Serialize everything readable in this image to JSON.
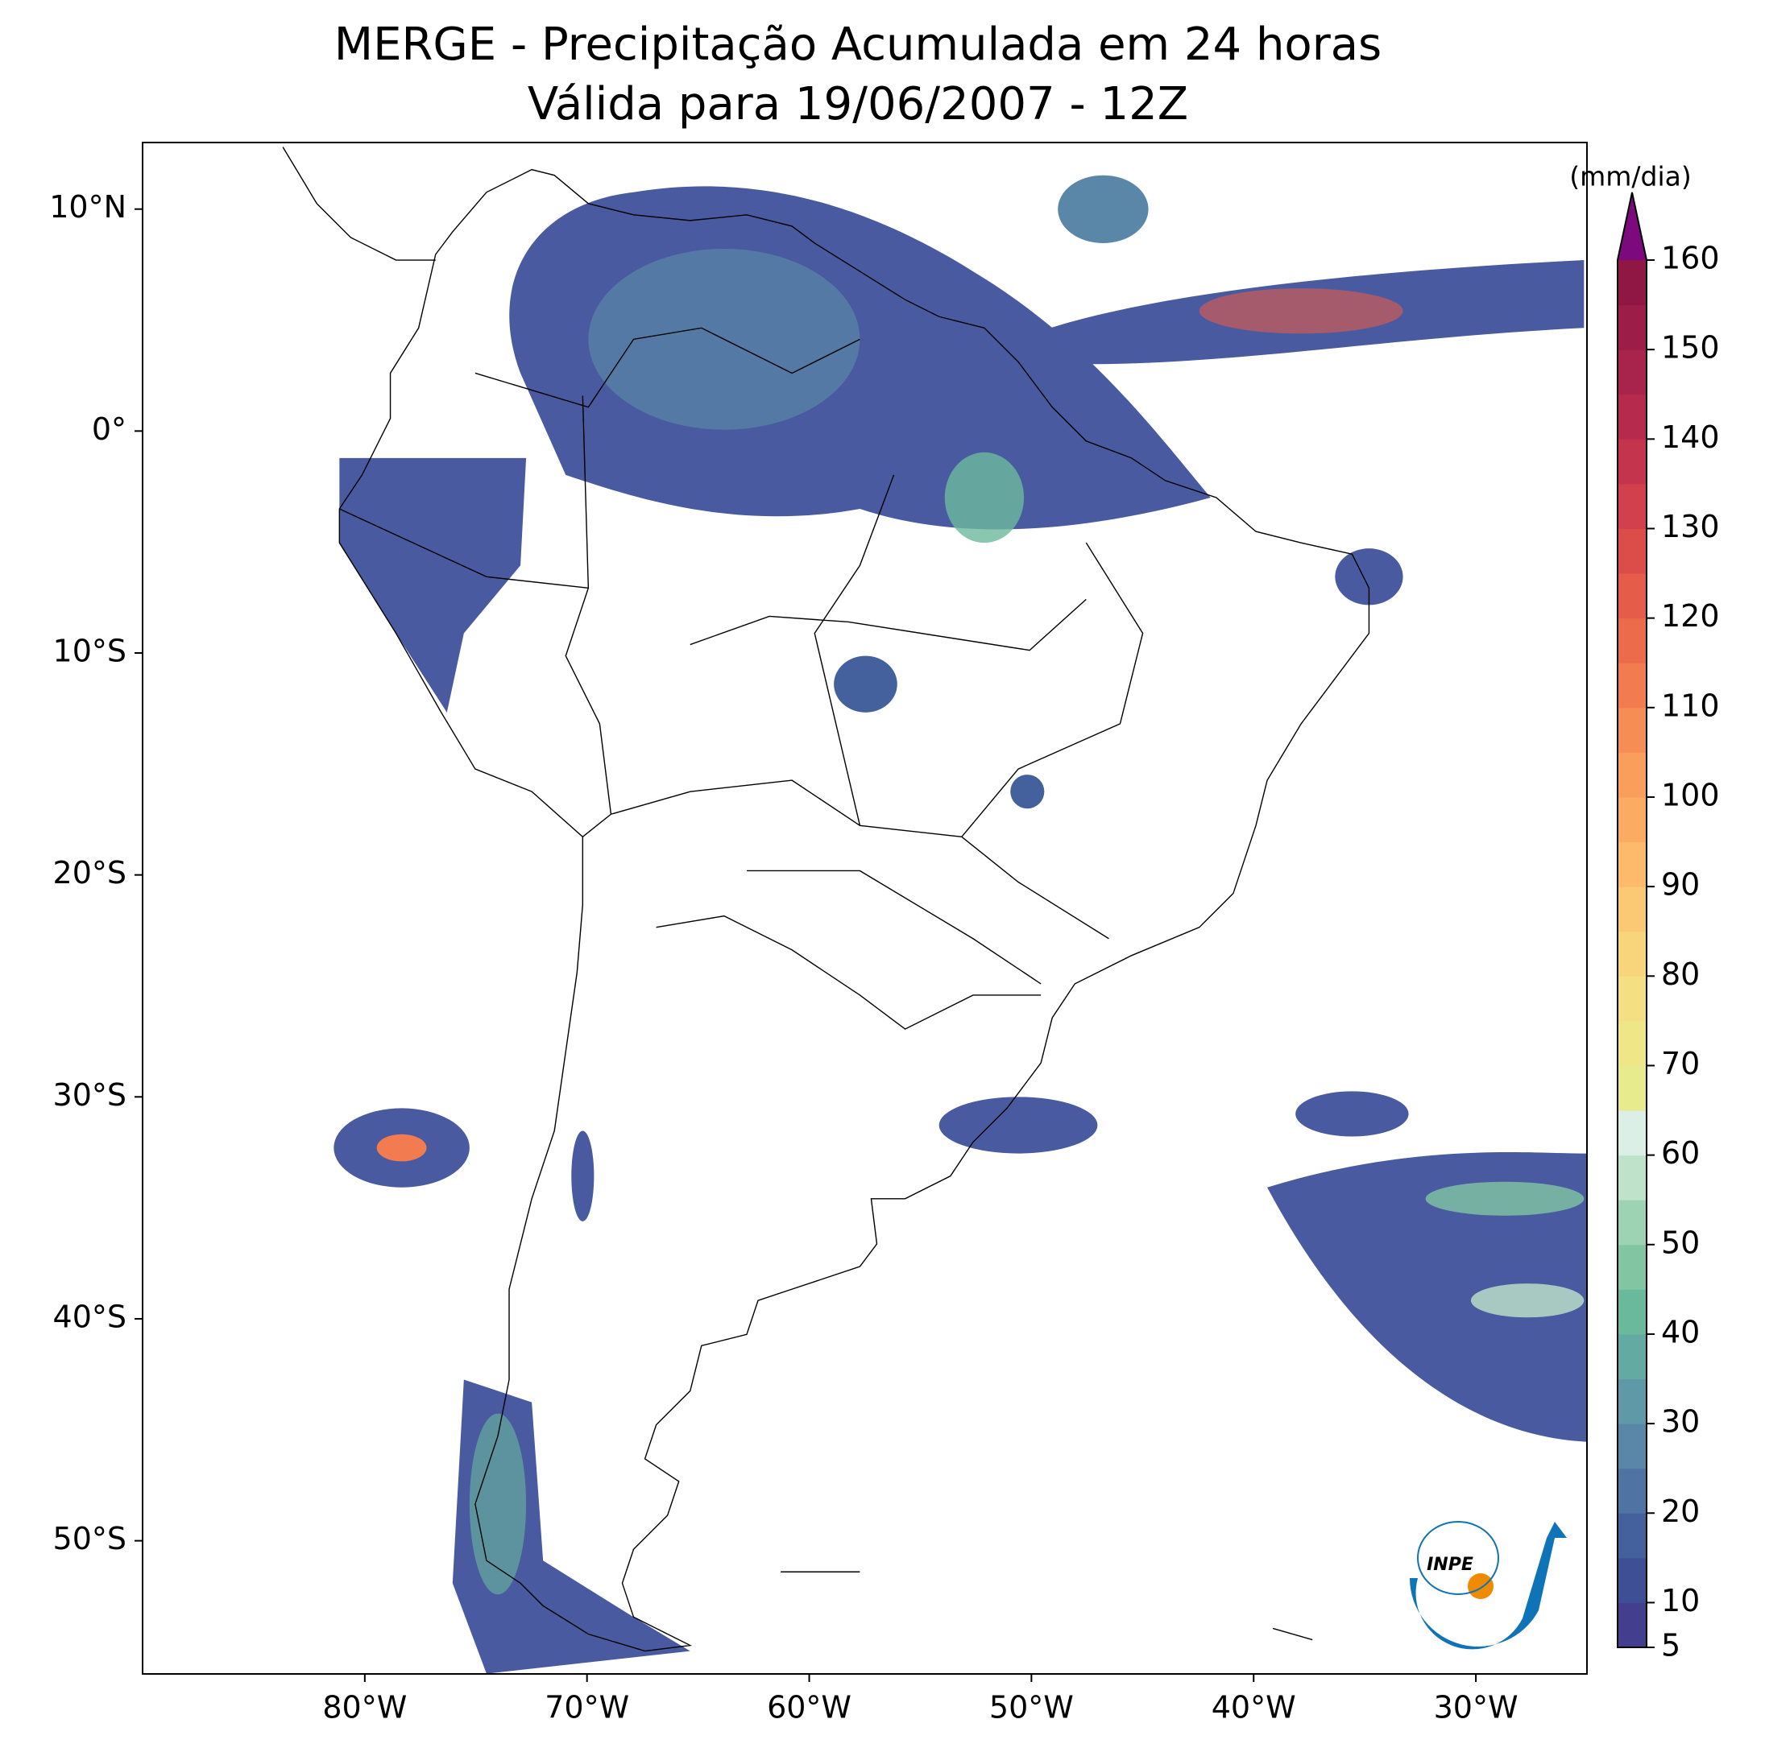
{
  "title": [
    "MERGE - Precipitação Acumulada em 24 horas",
    "Válida para 19/06/2007 - 12Z"
  ],
  "map": {
    "xlim": [
      -90,
      -25
    ],
    "ylim": [
      -56,
      13
    ],
    "xticks": [
      {
        "value": -80,
        "label": "80°W"
      },
      {
        "value": -70,
        "label": "70°W"
      },
      {
        "value": -60,
        "label": "60°W"
      },
      {
        "value": -50,
        "label": "50°W"
      },
      {
        "value": -40,
        "label": "40°W"
      },
      {
        "value": -30,
        "label": "30°W"
      }
    ],
    "yticks": [
      {
        "value": 10,
        "label": "10°N"
      },
      {
        "value": 0,
        "label": "0°"
      },
      {
        "value": -10,
        "label": "10°S"
      },
      {
        "value": -20,
        "label": "20°S"
      },
      {
        "value": -30,
        "label": "30°S"
      },
      {
        "value": -40,
        "label": "40°S"
      },
      {
        "value": -50,
        "label": "50°S"
      }
    ]
  },
  "colorbar": {
    "label": "(mm/dia)",
    "lim": [
      5,
      160
    ],
    "ticks": [
      5,
      10,
      20,
      30,
      40,
      50,
      60,
      70,
      80,
      90,
      100,
      110,
      120,
      130,
      140,
      150,
      160
    ],
    "colors": [
      "#433f8e",
      "#3f4f95",
      "#45619d",
      "#4f73a3",
      "#5a86a7",
      "#5f99a8",
      "#62aaa2",
      "#6bb99d",
      "#80c6a2",
      "#9dd3b2",
      "#bfe3ca",
      "#dcefe6",
      "#e8ea8e",
      "#efe688",
      "#f4df82",
      "#f8d57a",
      "#fbc873",
      "#fcba6a",
      "#fbac62",
      "#f99e5b",
      "#f68d54",
      "#f27c4f",
      "#ec6b4a",
      "#e55c49",
      "#dc4d4a",
      "#d1404c",
      "#c4344d",
      "#b62b4d",
      "#a8244c",
      "#9d1d49",
      "#901644"
    ],
    "extend_color": "#7d0a7d"
  },
  "logo": "INPE"
}
